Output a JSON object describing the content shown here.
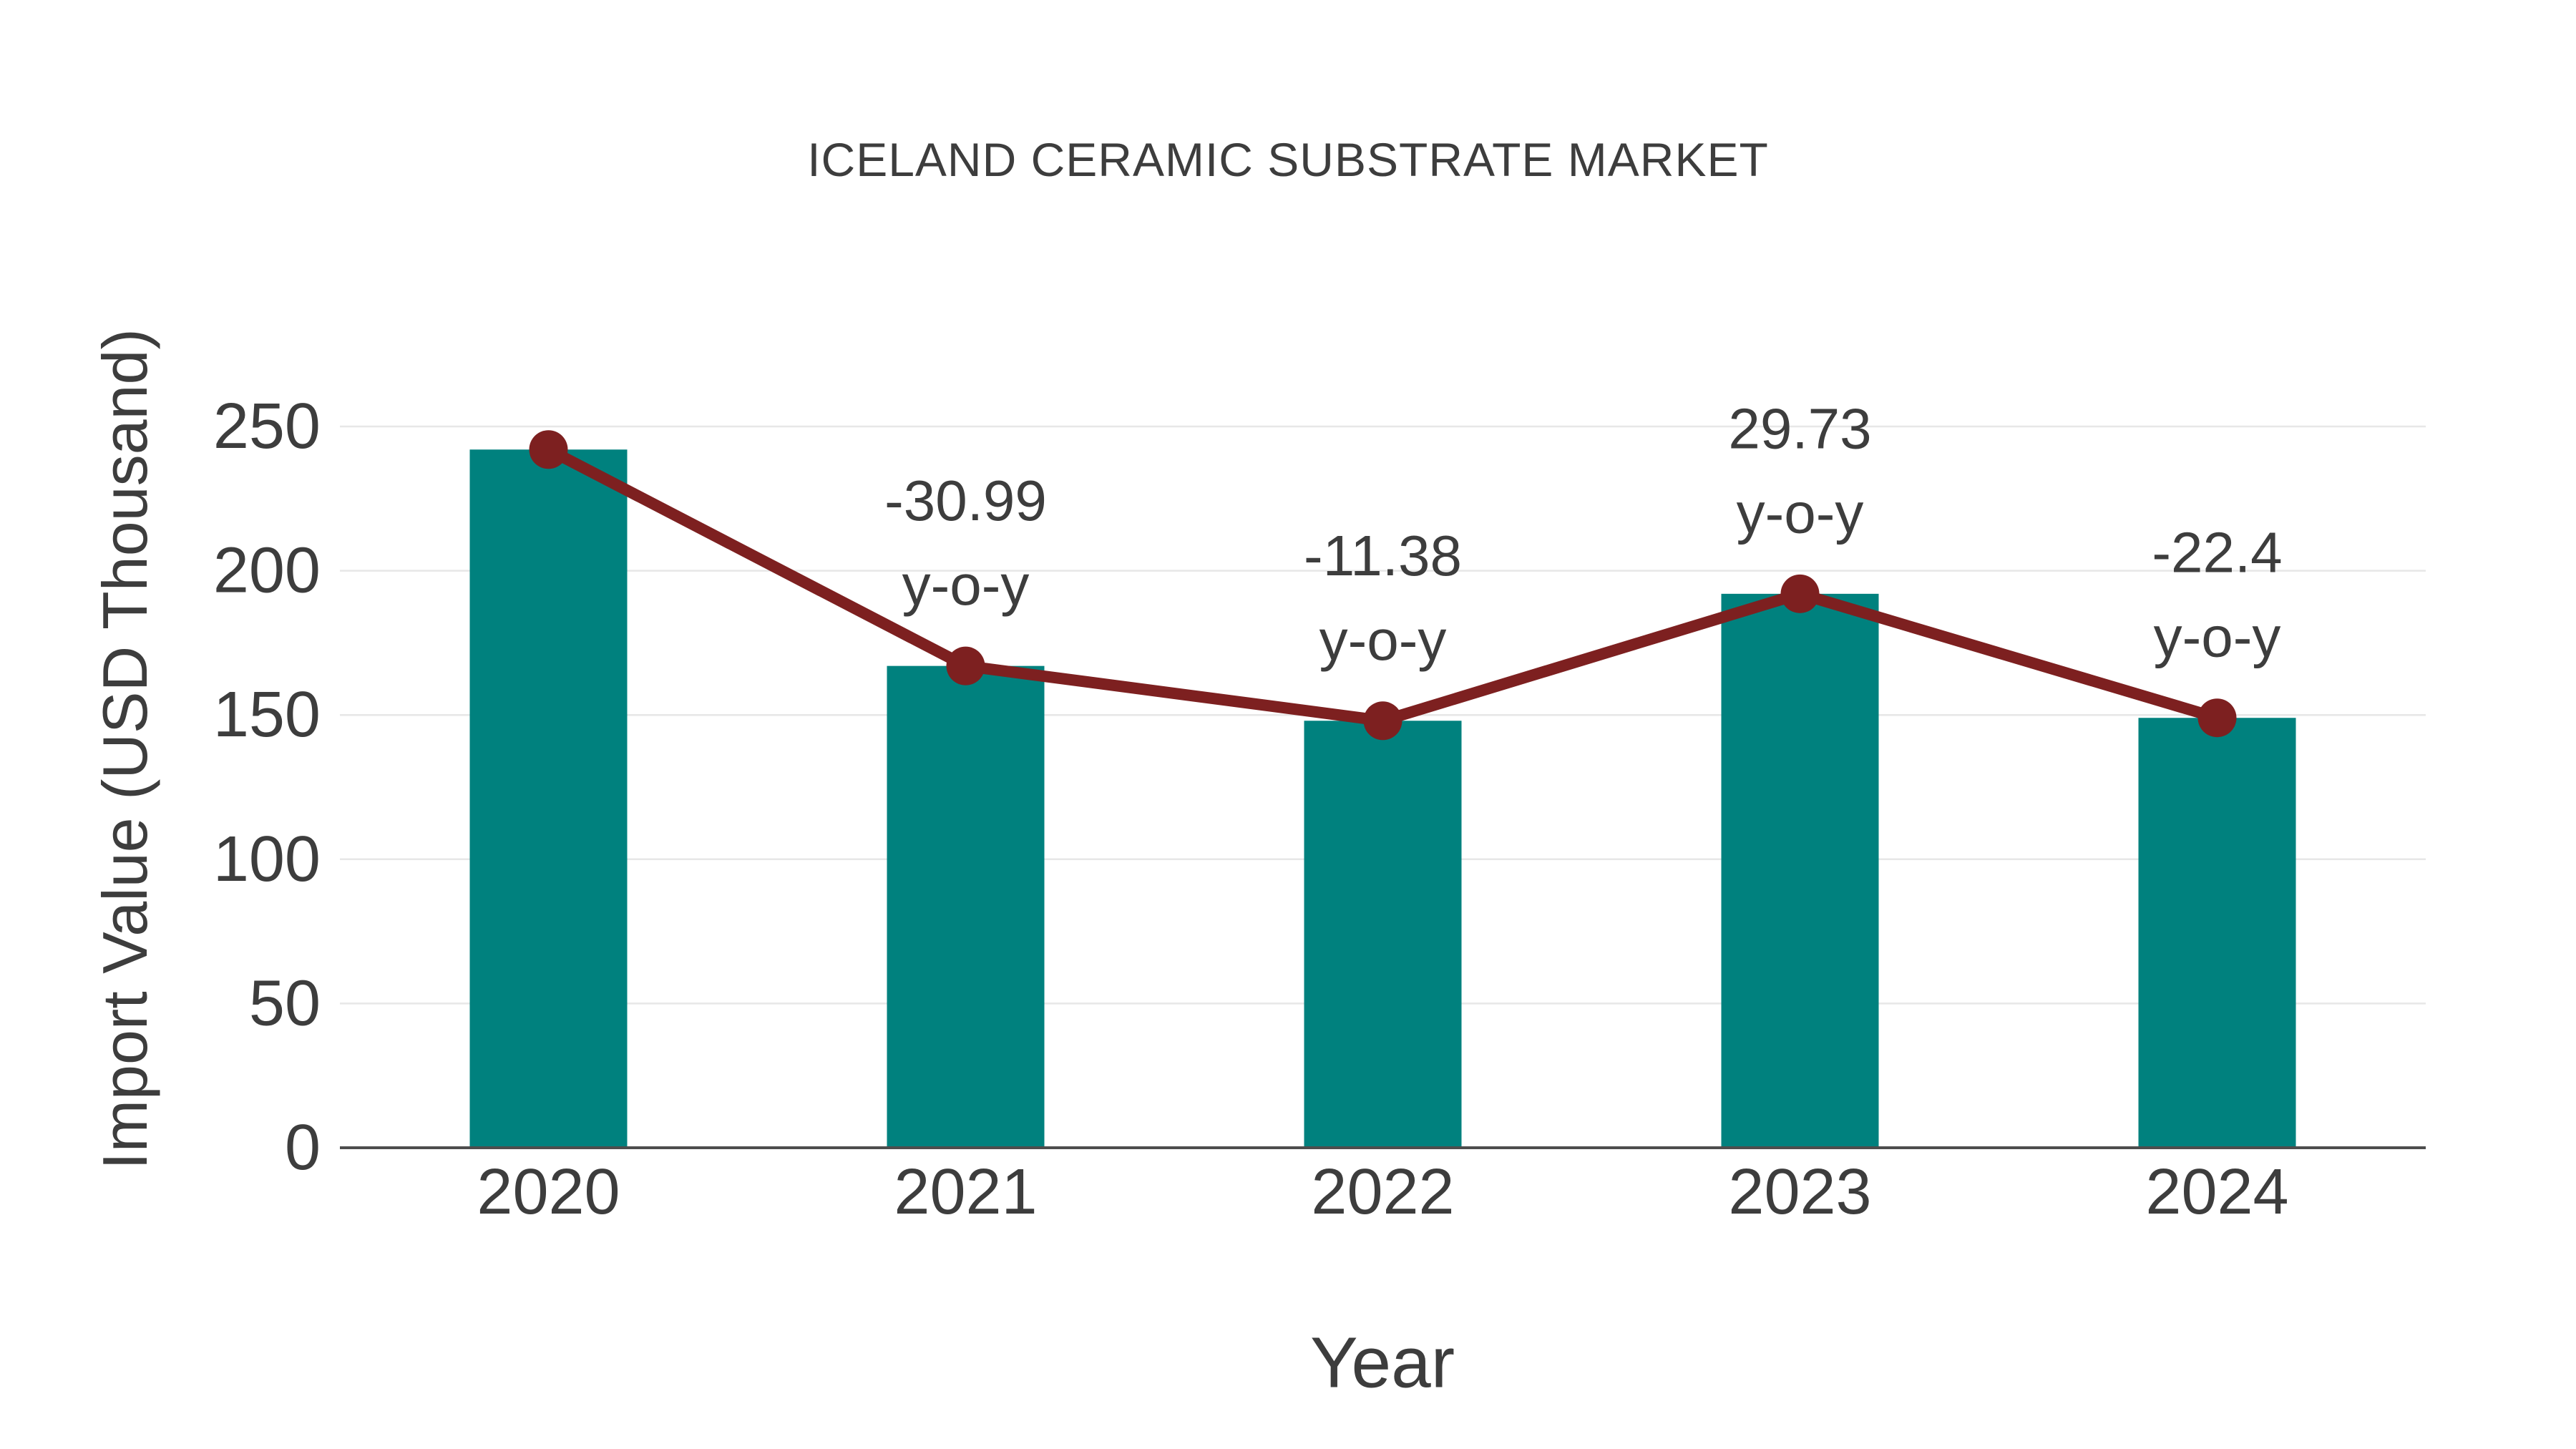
{
  "page": {
    "background": "#ffffff"
  },
  "chart_data": {
    "type": "bar",
    "title": "ICELAND CERAMIC SUBSTRATE MARKET",
    "xlabel": "Year",
    "ylabel": "Import Value (USD Thousand)",
    "categories": [
      "2020",
      "2021",
      "2022",
      "2023",
      "2024"
    ],
    "series": [
      {
        "name": "Import Value (USD Thousand)",
        "type": "bar",
        "color": "#00817e",
        "values": [
          242,
          167,
          148,
          192,
          149
        ]
      },
      {
        "name": "Import Value trend",
        "type": "line",
        "color": "#7d2020",
        "values": [
          242,
          167,
          148,
          192,
          149
        ]
      }
    ],
    "annotations": [
      {
        "category": "2021",
        "value_label": "-30.99",
        "suffix_label": "y-o-y"
      },
      {
        "category": "2022",
        "value_label": "-11.38",
        "suffix_label": "y-o-y"
      },
      {
        "category": "2023",
        "value_label": "29.73",
        "suffix_label": "y-o-y"
      },
      {
        "category": "2024",
        "value_label": "-22.4",
        "suffix_label": "y-o-y"
      }
    ],
    "yticks": [
      0,
      50,
      100,
      150,
      200,
      250
    ],
    "ylim": [
      0,
      250
    ],
    "grid": true,
    "legend_position": "none",
    "colors": {
      "bar": "#00817e",
      "line": "#7d2020",
      "marker": "#7d2020",
      "text": "#3d3d3d",
      "grid": "#e7e7e7",
      "axis": "#4d4d4d"
    }
  }
}
